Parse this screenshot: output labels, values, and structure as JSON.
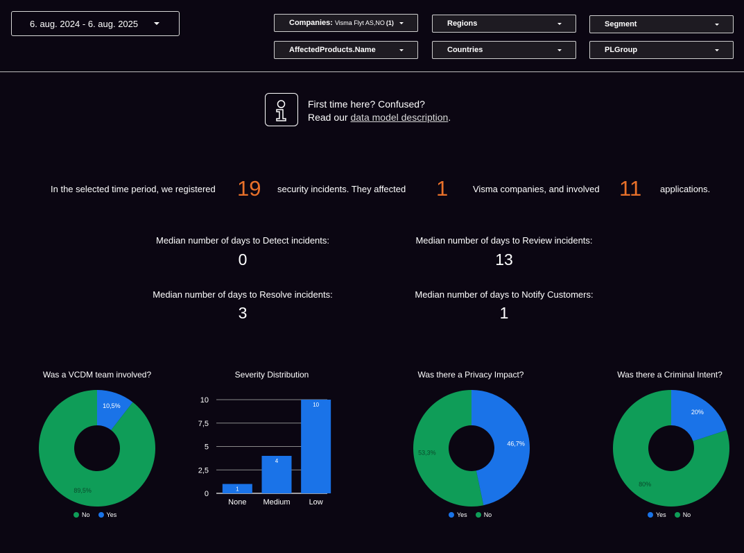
{
  "header": {
    "date_range": "6. aug. 2024 - 6. aug. 2025",
    "filters": {
      "companies_label": "Companies:",
      "companies_value": "Visma Flyt AS,NO",
      "companies_count": "(1)",
      "regions": "Regions",
      "segment": "Segment",
      "affected_products": "AffectedProducts.Name",
      "countries": "Countries",
      "plgroup": "PLGroup"
    }
  },
  "info": {
    "line1": "First time here? Confused?",
    "read_our": "Read our",
    "link": "data model description",
    "period": "."
  },
  "summary": {
    "text1": "In the selected time period, we registered",
    "incidents": "19",
    "text2": "security incidents. They affected",
    "companies": "1",
    "text3": "Visma companies, and involved",
    "applications": "11",
    "text4": "applications."
  },
  "medians": {
    "detect_label": "Median number of days to Detect incidents:",
    "detect_value": "0",
    "review_label": "Median number of days to Review incidents:",
    "review_value": "13",
    "resolve_label": "Median number of days to Resolve incidents:",
    "resolve_value": "3",
    "notify_label": "Median number of days to Notify Customers:",
    "notify_value": "1"
  },
  "colors": {
    "green": "#0f9d58",
    "blue": "#1a73e8",
    "accent": "#e8702a"
  },
  "chart_data": [
    {
      "type": "pie",
      "title": "Was a VCDM team involved?",
      "slices": [
        {
          "label": "Yes",
          "value": 10.5,
          "display": "10,5%",
          "color": "#1a73e8"
        },
        {
          "label": "No",
          "value": 89.5,
          "display": "89,5%",
          "color": "#0f9d58"
        }
      ],
      "legend": [
        "No",
        "Yes"
      ]
    },
    {
      "type": "bar",
      "title": "Severity Distribution",
      "categories": [
        "None",
        "Medium",
        "Low"
      ],
      "values": [
        1,
        4,
        10
      ],
      "yticks": [
        "0",
        "2,5",
        "5",
        "7,5",
        "10"
      ],
      "ylim": [
        0,
        10
      ],
      "grid": true
    },
    {
      "type": "pie",
      "title": "Was there a Privacy Impact?",
      "slices": [
        {
          "label": "Yes",
          "value": 46.7,
          "display": "46,7%",
          "color": "#1a73e8"
        },
        {
          "label": "No",
          "value": 53.3,
          "display": "53,3%",
          "color": "#0f9d58"
        }
      ],
      "legend": [
        "Yes",
        "No"
      ]
    },
    {
      "type": "pie",
      "title": "Was there a Criminal Intent?",
      "slices": [
        {
          "label": "Yes",
          "value": 20,
          "display": "20%",
          "color": "#1a73e8"
        },
        {
          "label": "No",
          "value": 80,
          "display": "80%",
          "color": "#0f9d58"
        }
      ],
      "legend": [
        "Yes",
        "No"
      ]
    }
  ]
}
